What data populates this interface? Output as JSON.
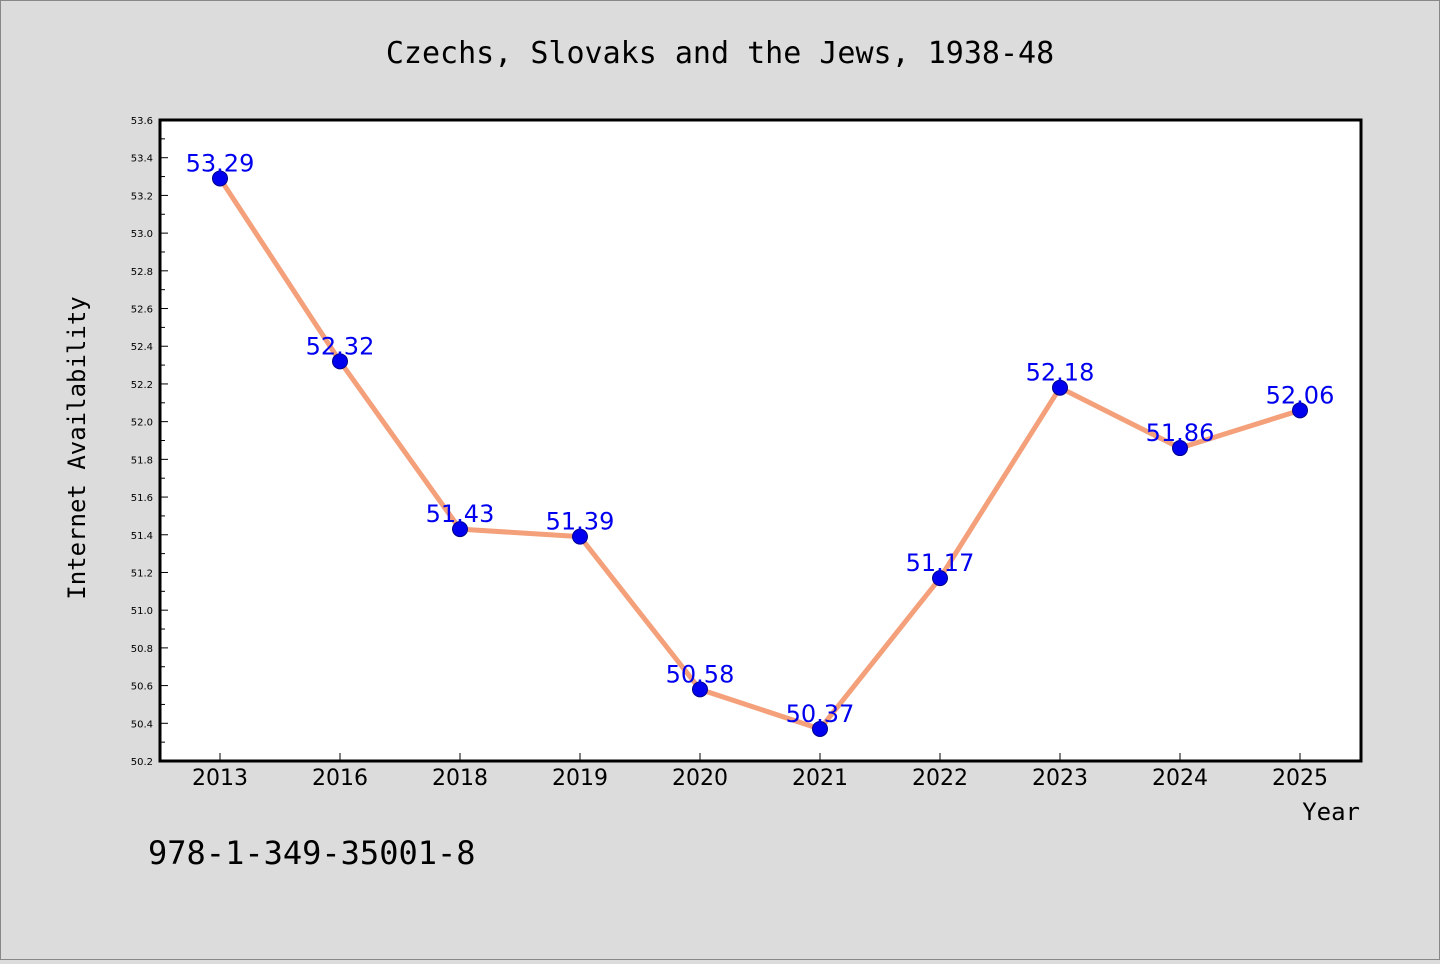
{
  "colors": {
    "background": "#dcdcdc",
    "plot_background": "#ffffff",
    "line": "#f4a07a",
    "marker": "#0000ee",
    "data_label": "#0000ee",
    "text": "#000000"
  },
  "isbn_text": "978-1-349-35001-8",
  "chart_data": {
    "type": "line",
    "title": "Czechs, Slovaks and the Jews, 1938-48",
    "xlabel": "Year",
    "ylabel": "Internet Availability",
    "categories": [
      "2013",
      "2016",
      "2018",
      "2019",
      "2020",
      "2021",
      "2022",
      "2023",
      "2024",
      "2025"
    ],
    "series": [
      {
        "values": [
          53.29,
          52.32,
          51.43,
          51.39,
          50.58,
          50.37,
          51.17,
          52.18,
          51.86,
          52.06
        ],
        "labels": [
          "53.29",
          "52.32",
          "51.43",
          "51.39",
          "50.58",
          "50.37",
          "51.17",
          "52.18",
          "51.86",
          "52.06"
        ]
      }
    ],
    "ylim": [
      50.2,
      53.6
    ],
    "yticks": [
      "50.2",
      "50.4",
      "50.6",
      "50.8",
      "51.0",
      "51.2",
      "51.4",
      "51.6",
      "51.8",
      "52.0",
      "52.2",
      "52.4",
      "52.6",
      "52.8",
      "53.0",
      "53.2",
      "53.4",
      "53.6"
    ],
    "grid": false,
    "legend": "none"
  }
}
